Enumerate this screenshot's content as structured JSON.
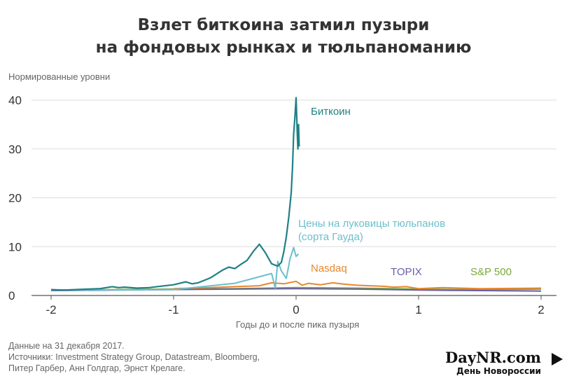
{
  "header": {
    "title_line1": "Взлет биткоина затмил пузыри",
    "title_line2": "на фондовых рынках и тюльпаноманию"
  },
  "footer": {
    "line1": "Данные на 31 декабря 2017.",
    "line2": "Источники: Investment Strategy Group, Datastream, Bloomberg,",
    "line3": "Питер Гарбер, Анн Голдгар, Эрнст Крелаге."
  },
  "logo": {
    "main": "DayNR.com",
    "sub": "День Новороссии"
  },
  "chart_data": {
    "type": "line",
    "title": "Взлет биткоина затмил пузыри на фондовых рынках и тюльпаноманию",
    "ylabel": "Нормированные уровни",
    "xlabel": "Годы до и после пика пузыря",
    "xlim": [
      -2.15,
      2.1
    ],
    "ylim": [
      0,
      42
    ],
    "x_ticks": [
      -2,
      -1,
      0,
      1,
      2
    ],
    "x_tick_labels": [
      "-2",
      "-1",
      "0",
      "1",
      "2"
    ],
    "y_ticks": [
      0,
      10,
      20,
      30,
      40
    ],
    "y_tick_labels": [
      "0",
      "10",
      "20",
      "30",
      "40"
    ],
    "grid": "horizontal",
    "series": [
      {
        "name": "S&P 500",
        "color": "#7aa83a",
        "x": [
          -2,
          -1.5,
          -1,
          -0.5,
          0,
          0.5,
          1,
          1.5,
          2
        ],
        "y": [
          1.1,
          1.2,
          1.3,
          1.4,
          1.6,
          1.5,
          1.3,
          1.2,
          1.3
        ]
      },
      {
        "name": "TOPIX",
        "color": "#6b5ea8",
        "x": [
          -2,
          -1.5,
          -1,
          -0.5,
          0,
          0.5,
          1,
          1.5,
          2
        ],
        "y": [
          1.0,
          1.1,
          1.2,
          1.3,
          1.4,
          1.3,
          1.1,
          1.0,
          0.9
        ]
      },
      {
        "name": "Nasdaq",
        "color": "#e8872d",
        "x": [
          -1,
          -0.7,
          -0.5,
          -0.3,
          -0.2,
          -0.1,
          0,
          0.05,
          0.1,
          0.2,
          0.3,
          0.4,
          0.5,
          0.6,
          0.7,
          0.8,
          0.9,
          1.0,
          1.2,
          1.5,
          2.0
        ],
        "y": [
          1.4,
          1.6,
          1.8,
          2.0,
          2.6,
          2.4,
          2.9,
          2.1,
          2.5,
          2.2,
          2.6,
          2.3,
          2.1,
          2.0,
          1.9,
          1.7,
          1.8,
          1.4,
          1.6,
          1.4,
          1.5
        ]
      },
      {
        "name": "Цены на луковицы тюльпанов (сорта Гауда)",
        "color": "#6bbfcb",
        "x": [
          -2,
          -1,
          -0.5,
          -0.2,
          -0.17,
          -0.15,
          -0.12,
          -0.08,
          -0.05,
          -0.02,
          0,
          0.02
        ],
        "y": [
          1.1,
          1.2,
          2.5,
          4.5,
          1.5,
          7.0,
          5.0,
          3.5,
          7.5,
          9.8,
          8.0,
          8.5
        ]
      },
      {
        "name": "Биткоин",
        "color": "#1f8085",
        "x": [
          -2.0,
          -1.9,
          -1.8,
          -1.7,
          -1.6,
          -1.5,
          -1.45,
          -1.4,
          -1.3,
          -1.2,
          -1.1,
          -1.0,
          -0.95,
          -0.9,
          -0.85,
          -0.8,
          -0.75,
          -0.7,
          -0.65,
          -0.6,
          -0.55,
          -0.5,
          -0.45,
          -0.4,
          -0.35,
          -0.3,
          -0.25,
          -0.2,
          -0.15,
          -0.12,
          -0.1,
          -0.08,
          -0.06,
          -0.04,
          -0.03,
          -0.02,
          -0.01,
          0.0,
          0.01,
          0.015,
          0.02,
          0.025
        ],
        "y": [
          1.2,
          1.1,
          1.2,
          1.3,
          1.4,
          1.8,
          1.6,
          1.7,
          1.5,
          1.6,
          1.9,
          2.2,
          2.5,
          2.8,
          2.4,
          2.6,
          3.1,
          3.6,
          4.4,
          5.2,
          5.8,
          5.5,
          6.4,
          7.2,
          9.0,
          10.5,
          8.7,
          6.5,
          6.0,
          6.8,
          9.0,
          12.0,
          16.0,
          21.0,
          26.0,
          33.0,
          36.5,
          40.5,
          33.0,
          30.0,
          35.0,
          30.5
        ]
      }
    ],
    "series_labels": [
      "Биткоин",
      "Цены на луковицы тюльпанов",
      "(сорта Гауда)",
      "Nasdaq",
      "TOPIX",
      "S&P 500"
    ]
  }
}
